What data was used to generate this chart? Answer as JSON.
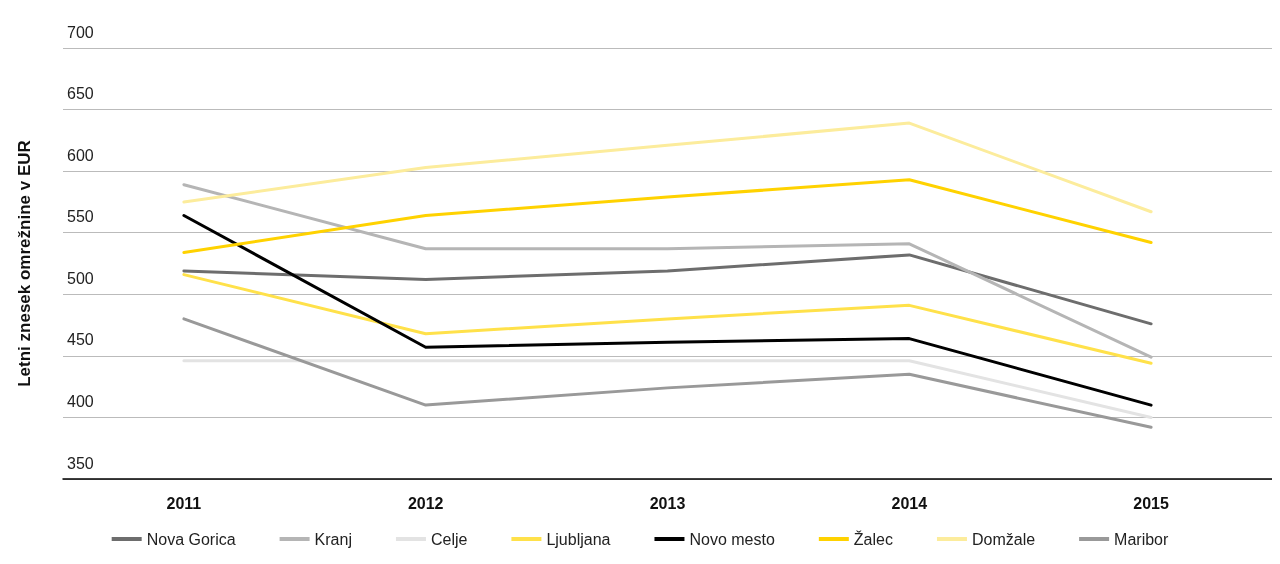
{
  "chart_data": {
    "type": "line",
    "ylabel": "Letni znesek omrežnine v EUR",
    "categories": [
      "2011",
      "2012",
      "2013",
      "2014",
      "2015"
    ],
    "series": [
      {
        "name": "Nova Gorica",
        "color": "#6d6d6d",
        "values": [
          519,
          512,
          519,
          532,
          476
        ]
      },
      {
        "name": "Kranj",
        "color": "#b5b5b5",
        "values": [
          589,
          537,
          537,
          541,
          449
        ]
      },
      {
        "name": "Celje",
        "color": "#e3e3e3",
        "values": [
          446,
          446,
          446,
          446,
          400
        ]
      },
      {
        "name": "Ljubljana",
        "color": "#ffe14a",
        "values": [
          516,
          468,
          480,
          491,
          444
        ]
      },
      {
        "name": "Novo mesto",
        "color": "#000000",
        "values": [
          564,
          457,
          461,
          464,
          410
        ]
      },
      {
        "name": "Žalec",
        "color": "#ffd200",
        "values": [
          534,
          564,
          579,
          593,
          542
        ]
      },
      {
        "name": "Domžale",
        "color": "#fcec9c",
        "values": [
          575,
          603,
          621,
          639,
          567
        ]
      },
      {
        "name": "Maribor",
        "color": "#999999",
        "values": [
          480,
          410,
          424,
          435,
          392
        ]
      }
    ],
    "ylim": [
      350,
      700
    ],
    "yticks": [
      350,
      400,
      450,
      500,
      550,
      600,
      650,
      700
    ],
    "grid": "y",
    "legend": "bottom",
    "marker": "none",
    "line_style": "solid"
  }
}
